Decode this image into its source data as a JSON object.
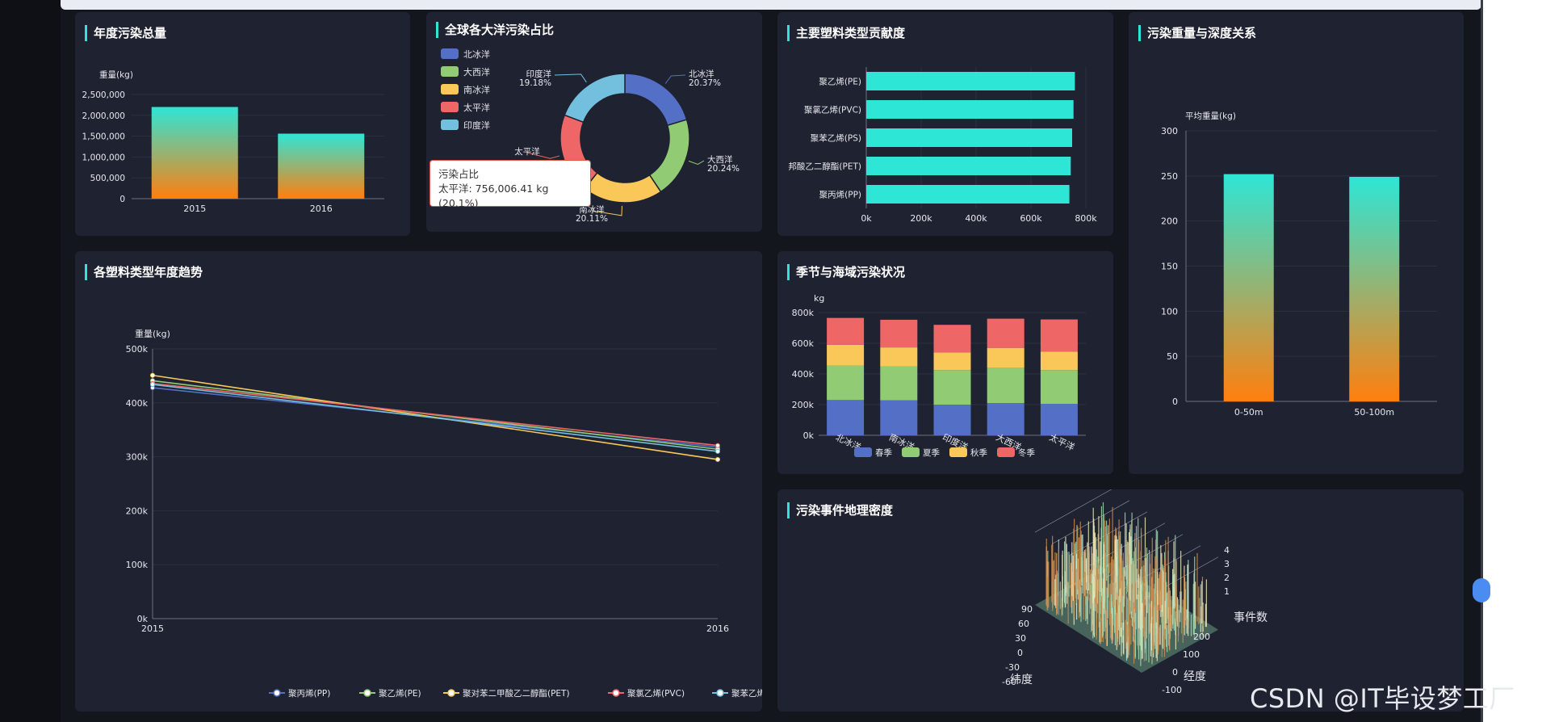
{
  "panels": {
    "annual_total": "年度污染总量",
    "ocean_share": "全球各大洋污染占比",
    "plastic_contribution": "主要塑料类型贡献度",
    "weight_depth": "污染重量与深度关系",
    "yearly_trend": "各塑料类型年度趋势",
    "season_sea": "季节与海域污染状况",
    "geo_density": "污染事件地理密度"
  },
  "tooltip": {
    "title": "污染占比",
    "text": "太平洋: 756,006.41 kg (20.1%)"
  },
  "watermark": "CSDN @IT毕设梦工厂",
  "colors": {
    "panel": "#1f2230",
    "teal": "#2ee6d6",
    "orange": "#ff7f0e",
    "blue": "#5470c6",
    "green": "#91cc75",
    "yellow": "#fac858",
    "red": "#ee6666",
    "lightblue": "#73c0de"
  },
  "chart_data": [
    {
      "id": "annual_total",
      "type": "bar",
      "ylabel": "重量(kg)",
      "categories": [
        "2015",
        "2016"
      ],
      "values": [
        2200000,
        1560000
      ],
      "ylim": [
        0,
        2500000
      ],
      "yticks": [
        "0",
        "500,000",
        "1,000,000",
        "1,500,000",
        "2,000,000",
        "2,500,000"
      ]
    },
    {
      "id": "ocean_share",
      "type": "pie",
      "legend": [
        "北冰洋",
        "大西洋",
        "南冰洋",
        "太平洋",
        "印度洋"
      ],
      "slices": [
        {
          "name": "北冰洋",
          "value": 20.37,
          "label": "北冰洋",
          "pct": "20.37%"
        },
        {
          "name": "大西洋",
          "value": 20.24,
          "label": "大西洋",
          "pct": "20.24%"
        },
        {
          "name": "南冰洋",
          "value": 20.11,
          "label": "南冰洋",
          "pct": "20.11%"
        },
        {
          "name": "太平洋",
          "value": 20.1,
          "label": "太平洋",
          "pct": ""
        },
        {
          "name": "印度洋",
          "value": 19.18,
          "label": "印度洋",
          "pct": "19.18%"
        }
      ]
    },
    {
      "id": "plastic_contribution",
      "type": "bar",
      "orientation": "horizontal",
      "categories": [
        "聚乙烯(PE)",
        "聚氯乙烯(PVC)",
        "聚苯乙烯(PS)",
        "邦酸乙二醇酯(PET)",
        "聚丙烯(PP)"
      ],
      "values": [
        760000,
        755000,
        750000,
        745000,
        740000
      ],
      "xlim": [
        0,
        800000
      ],
      "xticks": [
        "0k",
        "200k",
        "400k",
        "600k",
        "800k"
      ]
    },
    {
      "id": "weight_depth",
      "type": "bar",
      "ylabel": "平均重量(kg)",
      "categories": [
        "0-50m",
        "50-100m"
      ],
      "values": [
        252,
        249
      ],
      "ylim": [
        0,
        300
      ],
      "yticks": [
        "0",
        "50",
        "100",
        "150",
        "200",
        "250",
        "300"
      ]
    },
    {
      "id": "yearly_trend",
      "type": "line",
      "ylabel": "重量(kg)",
      "x": [
        "2015",
        "2016"
      ],
      "ylim": [
        0,
        500000
      ],
      "yticks": [
        "0k",
        "100k",
        "200k",
        "300k",
        "400k",
        "500k"
      ],
      "series": [
        {
          "name": "聚丙烯(PP)",
          "values": [
            428000,
            318000
          ]
        },
        {
          "name": "聚乙烯(PE)",
          "values": [
            441000,
            314000
          ]
        },
        {
          "name": "聚对苯二甲酸乙二醇酯(PET)",
          "values": [
            451000,
            295000
          ]
        },
        {
          "name": "聚氯乙烯(PVC)",
          "values": [
            436000,
            321000
          ]
        },
        {
          "name": "聚苯乙烯(PS)",
          "values": [
            434000,
            310000
          ]
        }
      ]
    },
    {
      "id": "season_sea",
      "type": "bar",
      "stacked": true,
      "ylabel": "kg",
      "categories": [
        "北冰洋",
        "南冰洋",
        "印度洋",
        "大西洋",
        "太平洋"
      ],
      "ylim": [
        0,
        800000
      ],
      "yticks": [
        "0k",
        "200k",
        "400k",
        "600k",
        "800k"
      ],
      "series": [
        {
          "name": "春季",
          "values": [
            230000,
            228000,
            200000,
            210000,
            205000
          ]
        },
        {
          "name": "夏季",
          "values": [
            225000,
            220000,
            225000,
            230000,
            220000
          ]
        },
        {
          "name": "秋季",
          "values": [
            135000,
            125000,
            115000,
            130000,
            120000
          ]
        },
        {
          "name": "冬季",
          "values": [
            175000,
            180000,
            180000,
            190000,
            210000
          ]
        }
      ]
    },
    {
      "id": "geo_density",
      "type": "bar3d",
      "xlabel": "纬度",
      "ylabel": "经度",
      "zlabel": "事件数",
      "xticks": [
        "90",
        "60",
        "30",
        "0",
        "-30",
        "-60"
      ],
      "yticks": [
        "200",
        "100",
        "0",
        "-100"
      ],
      "zticks": [
        "1",
        "2",
        "3",
        "4"
      ]
    }
  ]
}
